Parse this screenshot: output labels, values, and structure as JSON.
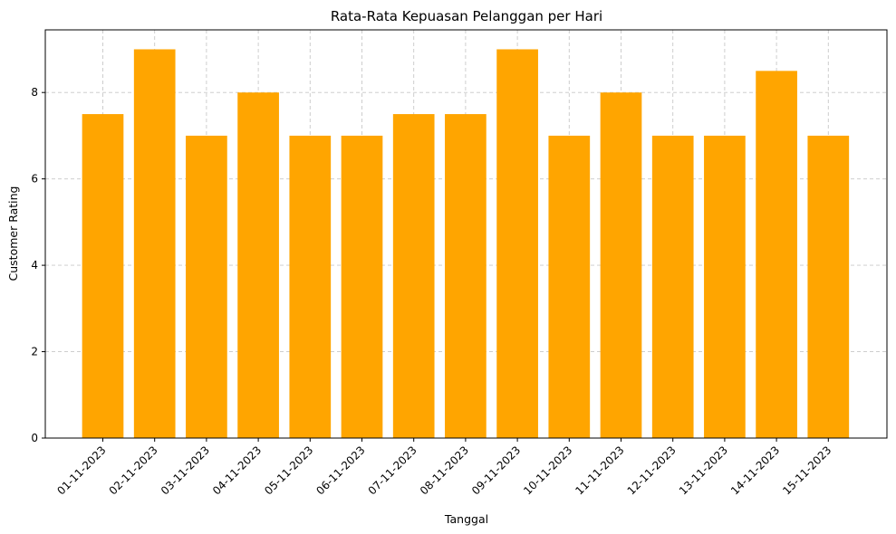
{
  "chart_data": {
    "type": "bar",
    "title": "Rata-Rata Kepuasan Pelanggan per Hari",
    "xlabel": "Tanggal",
    "ylabel": "Customer Rating",
    "categories": [
      "01-11-2023",
      "02-11-2023",
      "03-11-2023",
      "04-11-2023",
      "05-11-2023",
      "06-11-2023",
      "07-11-2023",
      "08-11-2023",
      "09-11-2023",
      "10-11-2023",
      "11-11-2023",
      "12-11-2023",
      "13-11-2023",
      "14-11-2023",
      "15-11-2023"
    ],
    "values": [
      7.5,
      9,
      7,
      8,
      7,
      7,
      7.5,
      7.5,
      9,
      7,
      8,
      7,
      7,
      8.5,
      7
    ],
    "ylim": [
      0,
      9.45
    ],
    "yticks": [
      0,
      2,
      4,
      6,
      8
    ],
    "grid": true,
    "bar_color": "#FFA500",
    "legend": "none"
  }
}
